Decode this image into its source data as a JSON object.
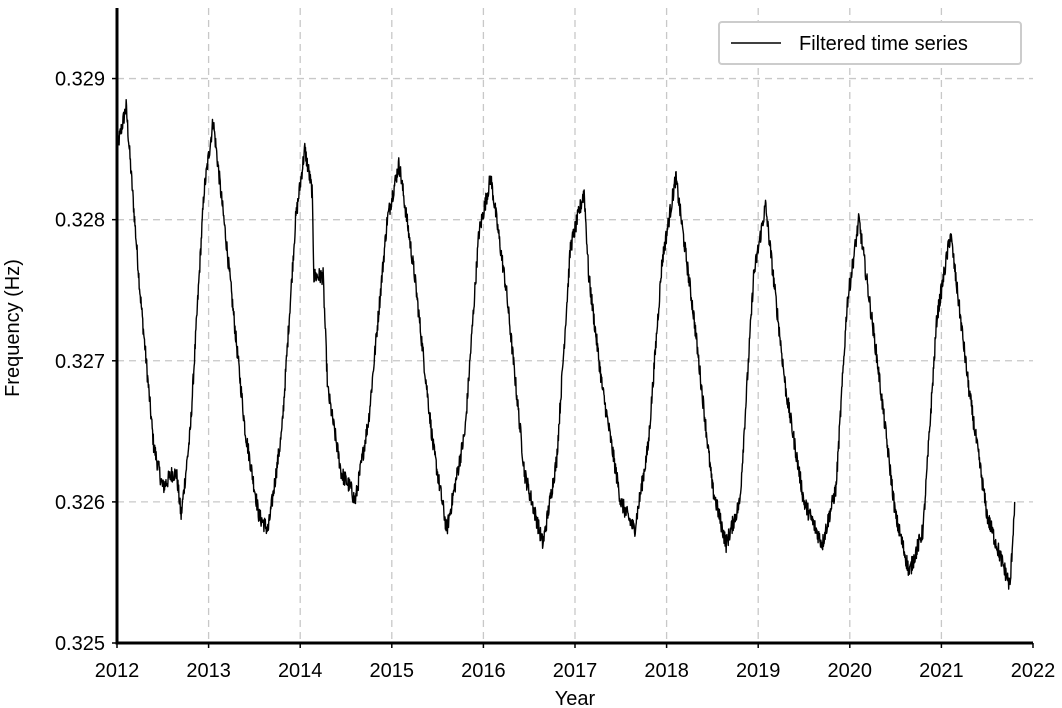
{
  "chart_data": {
    "type": "line",
    "title": "",
    "xlabel": "Year",
    "ylabel": "Frequency (Hz)",
    "xlim": [
      2012,
      2022
    ],
    "ylim": [
      0.325,
      0.3295
    ],
    "xticks": [
      "2012",
      "2013",
      "2014",
      "2015",
      "2016",
      "2017",
      "2018",
      "2019",
      "2020",
      "2021",
      "2022"
    ],
    "yticks": [
      "0.325",
      "0.326",
      "0.327",
      "0.328",
      "0.329"
    ],
    "grid": true,
    "legend_position": "top-right",
    "series": [
      {
        "name": "Filtered time series",
        "color": "#000000",
        "x": [
          2012.0,
          2012.1,
          2012.25,
          2012.4,
          2012.5,
          2012.6,
          2012.65,
          2012.7,
          2012.8,
          2012.95,
          2013.05,
          2013.2,
          2013.4,
          2013.55,
          2013.65,
          2013.8,
          2013.95,
          2014.05,
          2014.13,
          2014.15,
          2014.25,
          2014.3,
          2014.45,
          2014.55,
          2014.6,
          2014.75,
          2014.95,
          2015.08,
          2015.25,
          2015.45,
          2015.6,
          2015.8,
          2015.95,
          2016.08,
          2016.25,
          2016.45,
          2016.65,
          2016.8,
          2016.95,
          2017.1,
          2017.15,
          2017.3,
          2017.5,
          2017.65,
          2017.8,
          2017.95,
          2018.1,
          2018.3,
          2018.5,
          2018.65,
          2018.8,
          2018.95,
          2019.08,
          2019.3,
          2019.5,
          2019.7,
          2019.85,
          2019.97,
          2020.1,
          2020.3,
          2020.5,
          2020.65,
          2020.8,
          2020.95,
          2021.1,
          2021.3,
          2021.5,
          2021.6,
          2021.75,
          2021.8
        ],
        "y": [
          0.3285,
          0.3288,
          0.3275,
          0.3264,
          0.3261,
          0.3262,
          0.3262,
          0.3259,
          0.3265,
          0.3282,
          0.3287,
          0.3278,
          0.3265,
          0.3259,
          0.3258,
          0.3265,
          0.328,
          0.3285,
          0.3282,
          0.3276,
          0.3276,
          0.3268,
          0.3262,
          0.3261,
          0.326,
          0.3266,
          0.328,
          0.3284,
          0.3276,
          0.3264,
          0.3258,
          0.3265,
          0.3279,
          0.3283,
          0.3275,
          0.3262,
          0.3257,
          0.3263,
          0.3278,
          0.3282,
          0.3276,
          0.3268,
          0.326,
          0.3258,
          0.3264,
          0.3277,
          0.3283,
          0.3273,
          0.3261,
          0.3257,
          0.326,
          0.3276,
          0.3281,
          0.3268,
          0.326,
          0.3257,
          0.3261,
          0.3274,
          0.328,
          0.327,
          0.3259,
          0.3255,
          0.3258,
          0.3273,
          0.3279,
          0.3268,
          0.3259,
          0.3257,
          0.3254,
          0.326
        ]
      }
    ]
  }
}
